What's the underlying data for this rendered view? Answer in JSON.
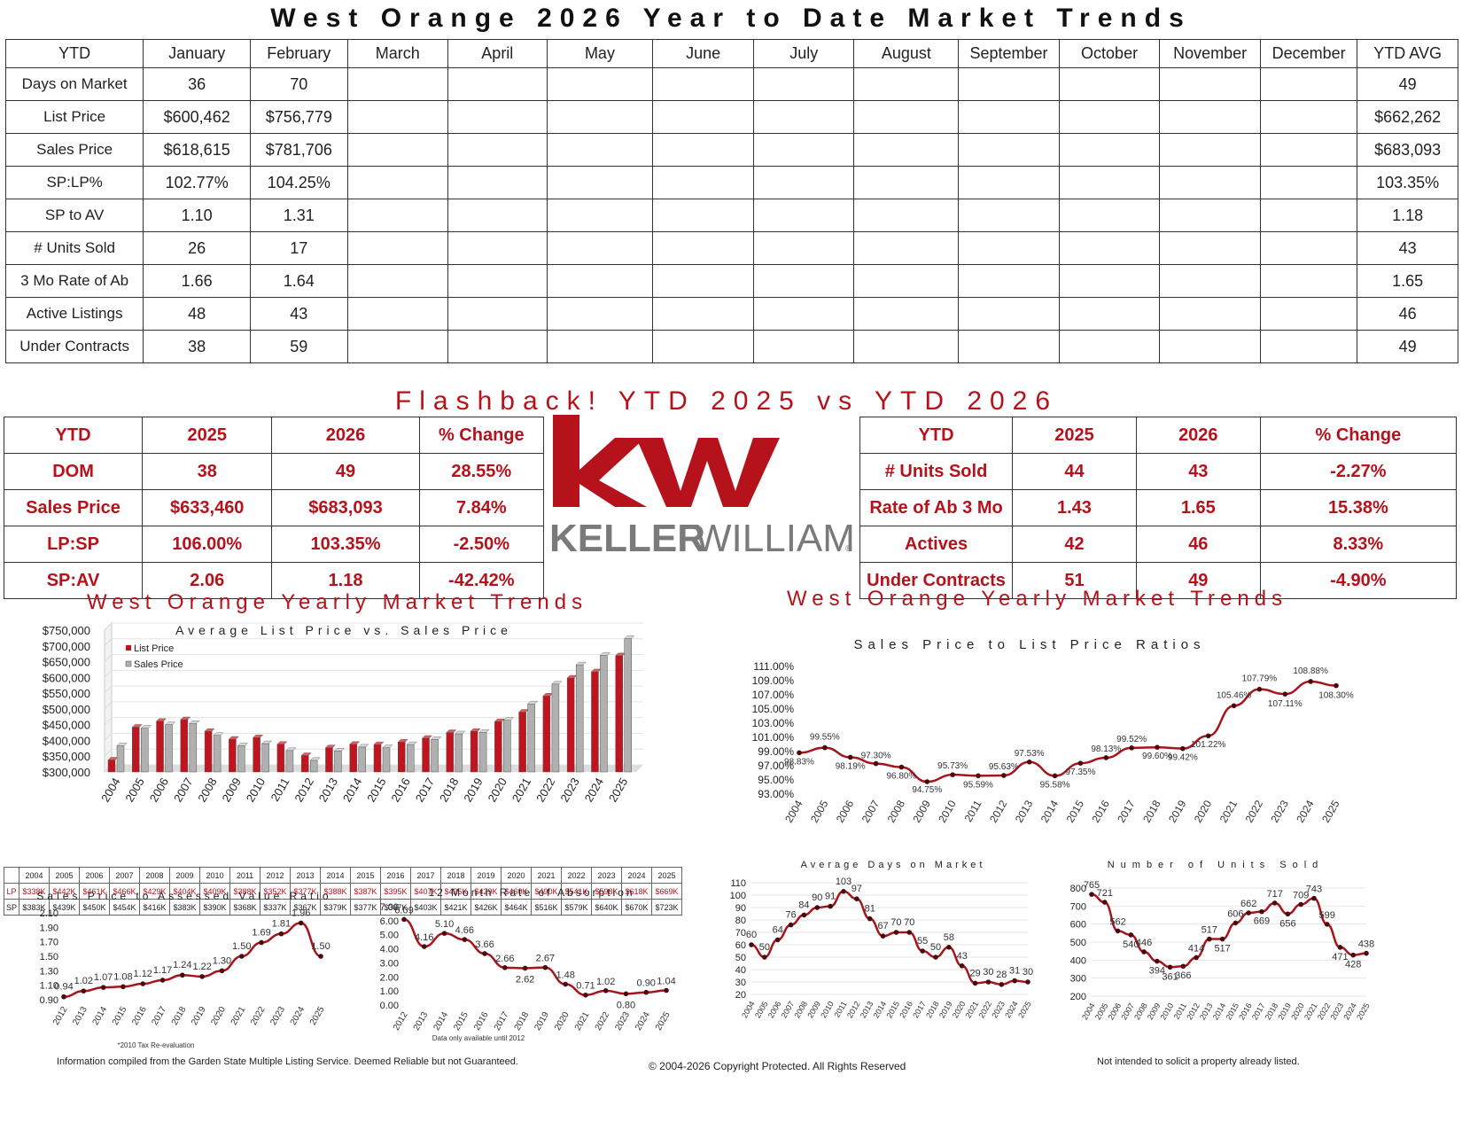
{
  "title": "West Orange 2026 Year to Date Market Trends",
  "ytd_table": {
    "headers": [
      "YTD",
      "January",
      "February",
      "March",
      "April",
      "May",
      "June",
      "July",
      "August",
      "September",
      "October",
      "November",
      "December",
      "YTD AVG"
    ],
    "rows": [
      {
        "label": "Days on Market",
        "jan": "36",
        "feb": "70",
        "avg": "49"
      },
      {
        "label": "List Price",
        "jan": "$600,462",
        "feb": "$756,779",
        "avg": "$662,262"
      },
      {
        "label": "Sales Price",
        "jan": "$618,615",
        "feb": "$781,706",
        "avg": "$683,093"
      },
      {
        "label": "SP:LP%",
        "jan": "102.77%",
        "feb": "104.25%",
        "avg": "103.35%"
      },
      {
        "label": "SP to AV",
        "jan": "1.10",
        "feb": "1.31",
        "avg": "1.18"
      },
      {
        "label": "# Units Sold",
        "jan": "26",
        "feb": "17",
        "avg": "43"
      },
      {
        "label": "3 Mo Rate of Ab",
        "jan": "1.66",
        "feb": "1.64",
        "avg": "1.65"
      },
      {
        "label": "Active Listings",
        "jan": "48",
        "feb": "43",
        "avg": "46"
      },
      {
        "label": "Under Contracts",
        "jan": "38",
        "feb": "59",
        "avg": "49"
      }
    ]
  },
  "flashback_title": "Flashback!  YTD 2025 vs YTD 2026",
  "compare_left": {
    "headers": [
      "YTD",
      "2025",
      "2026",
      "% Change"
    ],
    "rows": [
      [
        "DOM",
        "38",
        "49",
        "28.55%"
      ],
      [
        "Sales Price",
        "$633,460",
        "$683,093",
        "7.84%"
      ],
      [
        "LP:SP",
        "106.00%",
        "103.35%",
        "-2.50%"
      ],
      [
        "SP:AV",
        "2.06",
        "1.18",
        "-42.42%"
      ]
    ]
  },
  "compare_right": {
    "headers": [
      "YTD",
      "2025",
      "2026",
      "% Change"
    ],
    "rows": [
      [
        "# Units Sold",
        "44",
        "43",
        "-2.27%"
      ],
      [
        "Rate of Ab 3 Mo",
        "1.43",
        "1.65",
        "15.38%"
      ],
      [
        "Actives",
        "42",
        "46",
        "8.33%"
      ],
      [
        "Under Contracts",
        "51",
        "49",
        "-4.90%"
      ]
    ]
  },
  "logo": {
    "mark": "kw",
    "wordmark_bold": "KELLER",
    "wordmark_light": "WILLIAMS",
    "registered": "®",
    "color": "#b5121b"
  },
  "yearly_title_left": "West Orange Yearly Market Trends",
  "yearly_title_right": "West Orange Yearly Market Trends",
  "lp_sp_table": {
    "row_labels": [
      "LP",
      "SP"
    ],
    "lp": [
      "$338K",
      "$442K",
      "$461K",
      "$466K",
      "$429K",
      "$404K",
      "$409K",
      "$388K",
      "$352K",
      "$377K",
      "$388K",
      "$387K",
      "$395K",
      "$407K",
      "$425K",
      "$429K",
      "$460K",
      "$490K",
      "$541K",
      "$598K",
      "$618K",
      "$669K"
    ],
    "sp": [
      "$383K",
      "$439K",
      "$450K",
      "$454K",
      "$416K",
      "$383K",
      "$390K",
      "$368K",
      "$337K",
      "$367K",
      "$379K",
      "$377K",
      "$387K",
      "$403K",
      "$421K",
      "$426K",
      "$464K",
      "$516K",
      "$579K",
      "$640K",
      "$670K",
      "$723K"
    ]
  },
  "chart_data": [
    {
      "type": "bar",
      "title": "Average List Price vs. Sales Price",
      "categories": [
        "2004",
        "2005",
        "2006",
        "2007",
        "2008",
        "2009",
        "2010",
        "2011",
        "2012",
        "2013",
        "2014",
        "2015",
        "2016",
        "2017",
        "2018",
        "2019",
        "2020",
        "2021",
        "2022",
        "2023",
        "2024",
        "2025"
      ],
      "series": [
        {
          "name": "List Price",
          "color": "#c0151f",
          "values": [
            338,
            442,
            461,
            466,
            429,
            404,
            409,
            388,
            352,
            377,
            388,
            387,
            395,
            407,
            425,
            429,
            460,
            490,
            541,
            598,
            618,
            669
          ]
        },
        {
          "name": "Sales Price",
          "color": "#b0b0b0",
          "values": [
            383,
            439,
            450,
            454,
            416,
            383,
            390,
            368,
            337,
            367,
            379,
            377,
            387,
            403,
            421,
            426,
            464,
            516,
            579,
            640,
            670,
            723
          ]
        }
      ],
      "yticks": [
        "$300,000",
        "$350,000",
        "$400,000",
        "$450,000",
        "$500,000",
        "$550,000",
        "$600,000",
        "$650,000",
        "$700,000",
        "$750,000"
      ],
      "ylim": [
        300,
        750
      ],
      "legend": "top-left"
    },
    {
      "type": "line",
      "title": "Sales Price to List Price Ratios",
      "categories": [
        "2004",
        "2005",
        "2006",
        "2007",
        "2008",
        "2009",
        "2010",
        "2011",
        "2012",
        "2013",
        "2014",
        "2015",
        "2016",
        "2017",
        "2018",
        "2019",
        "2020",
        "2021",
        "2022",
        "2023",
        "2024",
        "2025"
      ],
      "values": [
        98.83,
        99.55,
        98.19,
        97.3,
        96.8,
        94.75,
        95.73,
        95.59,
        95.63,
        97.53,
        95.58,
        97.35,
        98.13,
        99.52,
        99.6,
        99.42,
        101.22,
        105.46,
        107.79,
        107.11,
        108.88,
        108.3
      ],
      "labels": [
        "98.83%",
        "99.55%",
        "98.19%",
        "97.30%",
        "96.80%",
        "94.75%",
        "95.73%",
        "95.59%",
        "95.63%",
        "97.53%",
        "95.58%",
        "97.35%",
        "98.13%",
        "99.52%",
        "99.60%",
        "99.42%",
        "101.22%",
        "105.46%",
        "107.79%",
        "107.11%",
        "108.88%",
        "108.30%"
      ],
      "yticks": [
        "93.00%",
        "95.00%",
        "97.00%",
        "99.00%",
        "101.00%",
        "103.00%",
        "105.00%",
        "107.00%",
        "109.00%",
        "111.00%"
      ],
      "ylim": [
        93,
        111
      ]
    },
    {
      "type": "line",
      "title": "Sales Price to Assessed Value Ratio",
      "categories": [
        "2012",
        "2013",
        "2014",
        "2015",
        "2016",
        "2017",
        "2018",
        "2019",
        "2020",
        "2021",
        "2022",
        "2023",
        "2024",
        "2025"
      ],
      "values": [
        0.94,
        1.02,
        1.07,
        1.08,
        1.12,
        1.17,
        1.24,
        1.22,
        1.3,
        1.5,
        1.69,
        1.81,
        1.96,
        1.5
      ],
      "labels": [
        "0.94",
        "1.02",
        "1.07",
        "1.08",
        "1.12",
        "1.17",
        "1.24",
        "1.22",
        "1.30",
        "1.50",
        "1.69",
        "1.81",
        "1.96",
        "1.50"
      ],
      "yticks": [
        "0.90",
        "1.10",
        "1.30",
        "1.50",
        "1.70",
        "1.90",
        "2.10"
      ],
      "ylim": [
        0.9,
        2.1
      ],
      "footnote": "*2010 Tax Re-evaluation"
    },
    {
      "type": "line",
      "title": "12 Month Rate of Absorption",
      "categories": [
        "2012",
        "2013",
        "2014",
        "2015",
        "2016",
        "2017",
        "2018",
        "2019",
        "2020",
        "2021",
        "2022",
        "2023",
        "2024",
        "2025"
      ],
      "values": [
        6.09,
        4.16,
        5.1,
        4.66,
        3.66,
        2.66,
        2.62,
        2.67,
        1.48,
        0.71,
        1.02,
        0.8,
        0.9,
        1.04
      ],
      "labels": [
        "6.09",
        "4.16",
        "5.10",
        "4.66",
        "3.66",
        "2.66",
        "2.62",
        "2.67",
        "1.48",
        "0.71",
        "1.02",
        "0.80",
        "0.90",
        "1.04"
      ],
      "yticks": [
        "0.00",
        "1.00",
        "2.00",
        "3.00",
        "4.00",
        "5.00",
        "6.00",
        "7.00"
      ],
      "ylim": [
        0,
        7
      ],
      "footnote": "Data only available until 2012"
    },
    {
      "type": "line",
      "title": "Average Days on Market",
      "categories": [
        "2004",
        "2005",
        "2006",
        "2007",
        "2008",
        "2009",
        "2010",
        "2011",
        "2012",
        "2013",
        "2014",
        "2015",
        "2016",
        "2017",
        "2018",
        "2019",
        "2020",
        "2021",
        "2022",
        "2023",
        "2024",
        "2025"
      ],
      "values": [
        60,
        50,
        64,
        76,
        84,
        90,
        91,
        103,
        97,
        81,
        67,
        70,
        70,
        55,
        50,
        58,
        43,
        29,
        30,
        28,
        31,
        30
      ],
      "labels": [
        "60",
        "50",
        "64",
        "76",
        "84",
        "90",
        "91",
        "103",
        "97",
        "81",
        "67",
        "70",
        "70",
        "55",
        "50",
        "58",
        "43",
        "29",
        "30",
        "28",
        "31",
        "30"
      ],
      "yticks": [
        "20",
        "30",
        "40",
        "50",
        "60",
        "70",
        "80",
        "90",
        "100",
        "110"
      ],
      "ylim": [
        20,
        110
      ]
    },
    {
      "type": "line",
      "title": "Number of Units Sold",
      "categories": [
        "2004",
        "2005",
        "2006",
        "2007",
        "2008",
        "2009",
        "2010",
        "2011",
        "2012",
        "2013",
        "2014",
        "2015",
        "2016",
        "2017",
        "2018",
        "2019",
        "2020",
        "2021",
        "2022",
        "2023",
        "2024",
        "2025"
      ],
      "values": [
        765,
        721,
        562,
        540,
        446,
        394,
        361,
        366,
        414,
        517,
        517,
        606,
        662,
        669,
        717,
        656,
        709,
        743,
        599,
        471,
        428,
        438
      ],
      "labels": [
        "765",
        "721",
        "562",
        "540",
        "446",
        "394",
        "361",
        "366",
        "414",
        "517",
        "517",
        "606",
        "662",
        "669",
        "717",
        "656",
        "709",
        "743",
        "599",
        "471",
        "428",
        "438"
      ],
      "yticks": [
        "200",
        "300",
        "400",
        "500",
        "600",
        "700",
        "800"
      ],
      "ylim": [
        200,
        800
      ]
    }
  ],
  "footer": {
    "left": "Information compiled from the Garden State Multiple Listing Service.  Deemed Reliable but not Guaranteed.",
    "center": "© 2004-2026 Copyright Protected.  All Rights Reserved",
    "right": "Not intended to solicit a property already listed."
  }
}
